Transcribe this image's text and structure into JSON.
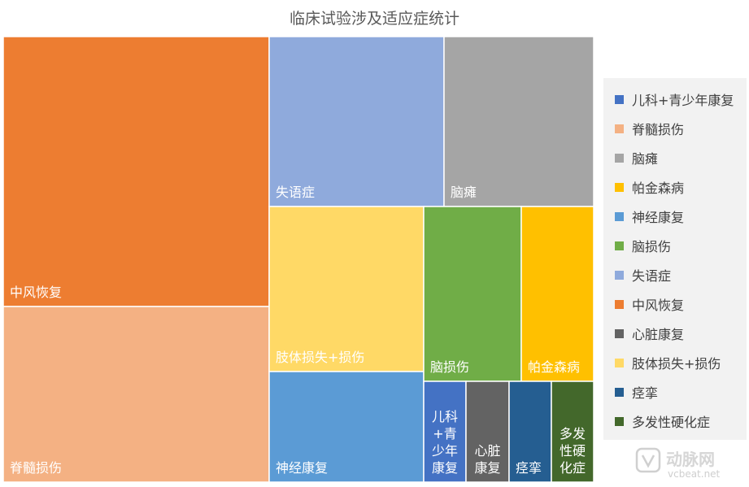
{
  "chart_data": {
    "type": "treemap",
    "title": "临床试验涉及适应症统计",
    "items": [
      {
        "name": "中风恢复",
        "color": "#ED7D31"
      },
      {
        "name": "脊髓损伤",
        "color": "#F4B183"
      },
      {
        "name": "失语症",
        "color": "#8FAADC"
      },
      {
        "name": "脑瘫",
        "color": "#A5A5A5"
      },
      {
        "name": "肢体损失+损伤",
        "color": "#FFD966"
      },
      {
        "name": "神经康复",
        "color": "#5B9BD5"
      },
      {
        "name": "脑损伤",
        "color": "#70AD47"
      },
      {
        "name": "帕金森病",
        "color": "#FFC000"
      },
      {
        "name": "儿科+青少年康复",
        "color": "#4472C4"
      },
      {
        "name": "心脏康复",
        "color": "#636363"
      },
      {
        "name": "痉挛",
        "color": "#255E91"
      },
      {
        "name": "多发性硬化症",
        "color": "#43682B"
      }
    ],
    "legend_order": [
      "儿科+青少年康复",
      "脊髓损伤",
      "脑瘫",
      "帕金森病",
      "神经康复",
      "脑损伤",
      "失语症",
      "中风恢复",
      "心脏康复",
      "肢体损失+损伤",
      "痉挛",
      "多发性硬化症"
    ],
    "legend_position": "right"
  },
  "watermark": {
    "brand": "动脉网",
    "url": "vcbeat.net"
  }
}
